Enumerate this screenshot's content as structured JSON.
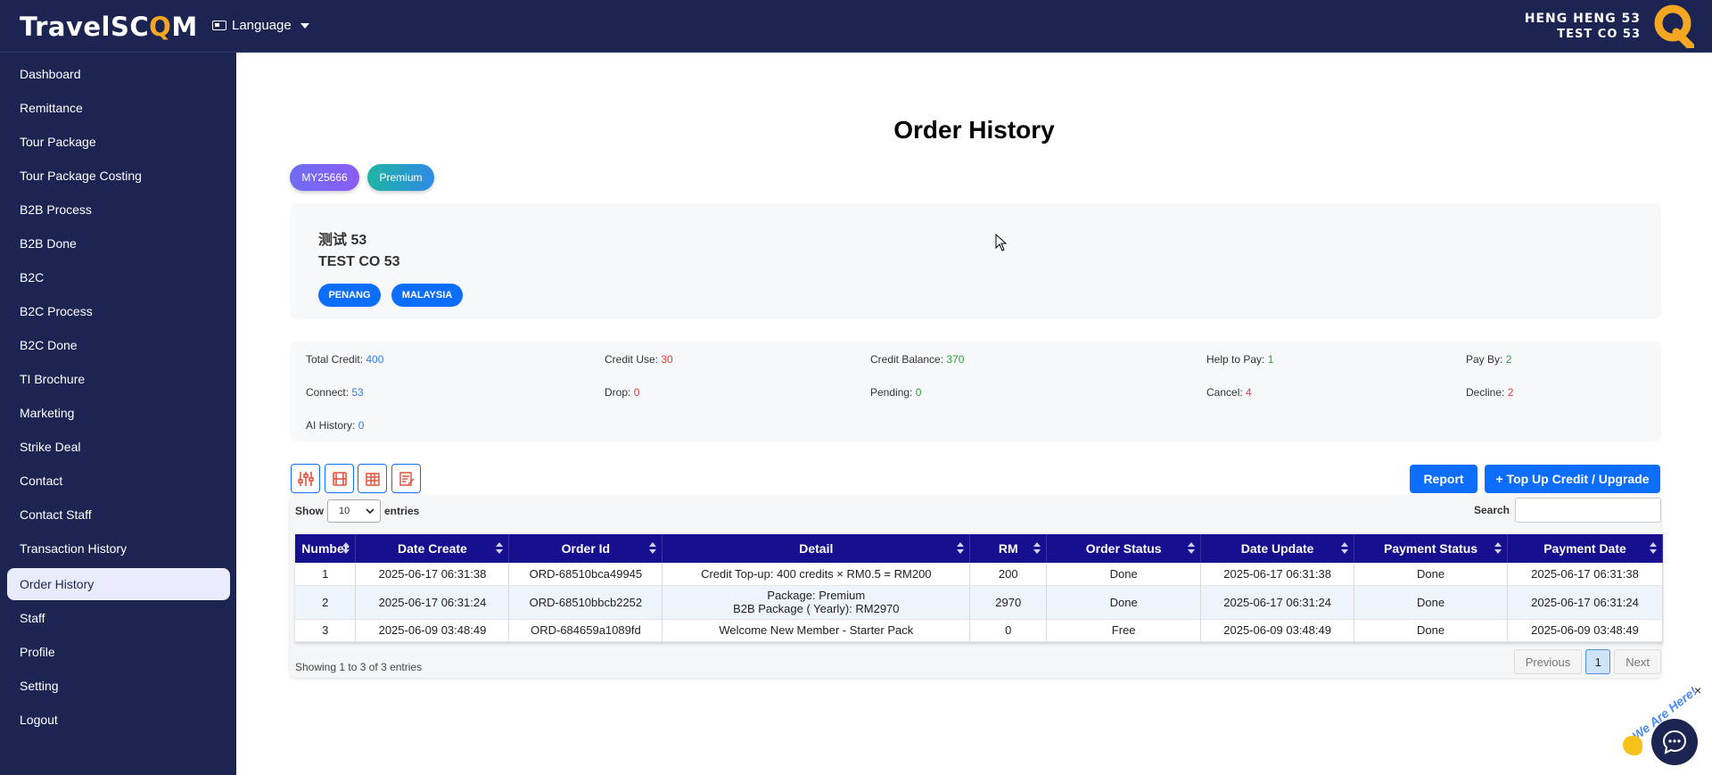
{
  "brand": {
    "logo_text_a": "TravelSC",
    "logo_text_o": "Q",
    "logo_text_b": "M"
  },
  "language": {
    "label": "Language"
  },
  "user": {
    "name": "HENG HENG 53",
    "company": "TEST CO 53"
  },
  "sidebar": {
    "items": [
      {
        "label": "Dashboard"
      },
      {
        "label": "Remittance"
      },
      {
        "label": "Tour Package"
      },
      {
        "label": "Tour Package Costing"
      },
      {
        "label": "B2B Process"
      },
      {
        "label": "B2B Done"
      },
      {
        "label": "B2C"
      },
      {
        "label": "B2C Process"
      },
      {
        "label": "B2C Done"
      },
      {
        "label": "TI Brochure"
      },
      {
        "label": "Marketing"
      },
      {
        "label": "Strike Deal"
      },
      {
        "label": "Contact"
      },
      {
        "label": "Contact Staff"
      },
      {
        "label": "Transaction History"
      },
      {
        "label": "Order History"
      },
      {
        "label": "Staff"
      },
      {
        "label": "Profile"
      },
      {
        "label": "Setting"
      },
      {
        "label": "Logout"
      }
    ],
    "active": "Order History"
  },
  "page": {
    "title": "Order History"
  },
  "member": {
    "code": "MY25666",
    "tier": "Premium"
  },
  "company": {
    "name_cn": "测试 53",
    "name_en": "TEST CO 53",
    "tags": [
      "PENANG",
      "MALAYSIA"
    ]
  },
  "stats": {
    "total_credit": {
      "label": "Total Credit:",
      "value": "400"
    },
    "credit_use": {
      "label": "Credit Use:",
      "value": "30"
    },
    "credit_balance": {
      "label": "Credit Balance:",
      "value": "370"
    },
    "help_to_pay": {
      "label": "Help to Pay:",
      "value": "1"
    },
    "pay_by": {
      "label": "Pay By:",
      "value": "2"
    },
    "connect": {
      "label": "Connect:",
      "value": "53"
    },
    "drop": {
      "label": "Drop:",
      "value": "0"
    },
    "pending": {
      "label": "Pending:",
      "value": "0"
    },
    "cancel": {
      "label": "Cancel:",
      "value": "4"
    },
    "decline": {
      "label": "Decline:",
      "value": "2"
    },
    "ai_history": {
      "label": "AI History:",
      "value": "0"
    }
  },
  "toolbar": {
    "icons": [
      "filter-sliders-icon",
      "film-icon",
      "building-icon",
      "edit-note-icon"
    ],
    "report_label": "Report",
    "topup_label": "+ Top Up Credit / Upgrade"
  },
  "table_controls": {
    "show_label": "Show",
    "page_size": "10",
    "entries_label": "entries",
    "search_label": "Search",
    "search_value": ""
  },
  "table": {
    "headers": [
      "Number",
      "Date Create",
      "Order Id",
      "Detail",
      "RM",
      "Order Status",
      "Date Update",
      "Payment Status",
      "Payment Date"
    ],
    "rows": [
      {
        "number": "1",
        "date_create": "2025-06-17 06:31:38",
        "order_id": "ORD-68510bca49945",
        "detail_1": "Credit Top-up: 400 credits × RM0.5 = RM200",
        "detail_2": "",
        "rm": "200",
        "order_status": "Done",
        "date_update": "2025-06-17 06:31:38",
        "payment_status": "Done",
        "payment_date": "2025-06-17 06:31:38"
      },
      {
        "number": "2",
        "date_create": "2025-06-17 06:31:24",
        "order_id": "ORD-68510bbcb2252",
        "detail_1": "Package: Premium",
        "detail_2": "B2B Package ( Yearly): RM2970",
        "rm": "2970",
        "order_status": "Done",
        "date_update": "2025-06-17 06:31:24",
        "payment_status": "Done",
        "payment_date": "2025-06-17 06:31:24"
      },
      {
        "number": "3",
        "date_create": "2025-06-09 03:48:49",
        "order_id": "ORD-684659a1089fd",
        "detail_1": "Welcome New Member - Starter Pack",
        "detail_2": "",
        "rm": "0",
        "order_status": "Free",
        "date_update": "2025-06-09 03:48:49",
        "payment_status": "Done",
        "payment_date": "2025-06-09 03:48:49"
      }
    ],
    "info": "Showing 1 to 3 of 3 entries"
  },
  "pagination": {
    "previous": "Previous",
    "current": "1",
    "next": "Next"
  },
  "chat": {
    "label": "We Are Here!",
    "close": "×"
  },
  "colors": {
    "navy": "#1c2451",
    "primary": "#0d6efd",
    "table_header": "#160f8f",
    "blue_value": "#2f80ed",
    "red_value": "#e53935",
    "green_value": "#2e9e3e"
  }
}
